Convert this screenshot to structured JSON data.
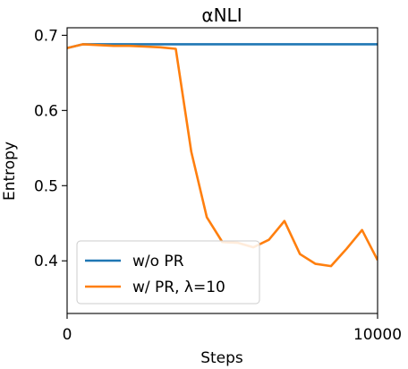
{
  "chart_data": {
    "type": "line",
    "title": "αNLI",
    "xlabel": "Steps",
    "ylabel": "Entropy",
    "xlim": [
      0,
      10000
    ],
    "ylim": [
      0.33,
      0.71
    ],
    "xticks": [
      0,
      10000
    ],
    "xtick_labels": [
      "0",
      "10000"
    ],
    "yticks": [
      0.4,
      0.5,
      0.6,
      0.7
    ],
    "ytick_labels": [
      "0.4",
      "0.5",
      "0.6",
      "0.7"
    ],
    "grid": false,
    "legend_position": "lower-left",
    "series": [
      {
        "name": "w/o PR",
        "color": "#1f77b4",
        "x": [
          0,
          500,
          1000,
          2000,
          3000,
          4000,
          5000,
          6000,
          7000,
          8000,
          9000,
          10000
        ],
        "y": [
          0.683,
          0.688,
          0.688,
          0.688,
          0.688,
          0.688,
          0.688,
          0.688,
          0.688,
          0.688,
          0.688,
          0.688
        ]
      },
      {
        "name": "w/ PR, λ=10",
        "color": "#ff7f0e",
        "x": [
          0,
          500,
          1000,
          1500,
          2000,
          2500,
          3000,
          3500,
          4000,
          4500,
          5000,
          5500,
          6000,
          6500,
          7000,
          7500,
          8000,
          8500,
          9000,
          9500,
          10000
        ],
        "y": [
          0.683,
          0.688,
          0.687,
          0.686,
          0.686,
          0.685,
          0.684,
          0.682,
          0.545,
          0.458,
          0.425,
          0.424,
          0.418,
          0.428,
          0.453,
          0.409,
          0.396,
          0.393,
          0.416,
          0.441,
          0.401
        ]
      }
    ]
  }
}
